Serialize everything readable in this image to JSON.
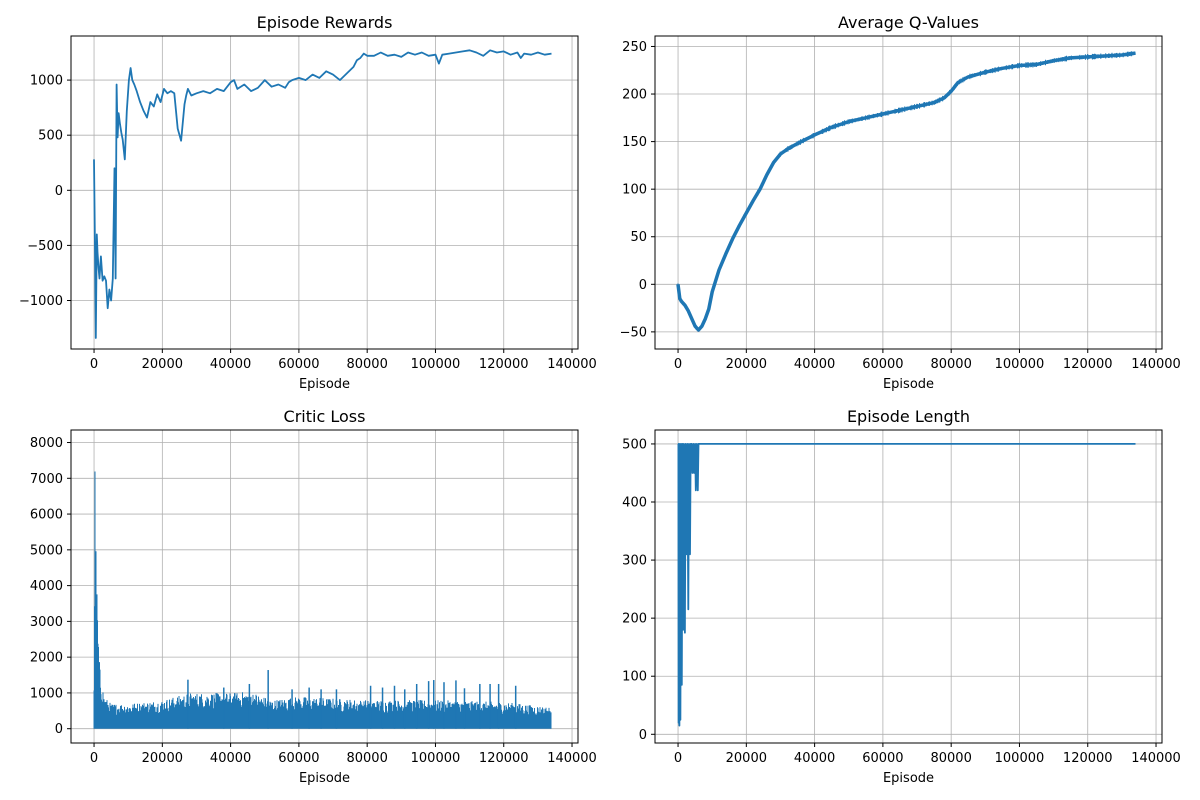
{
  "figure": {
    "series_color": "#1f77b4",
    "background": "#ffffff"
  },
  "chart_data": [
    {
      "id": "rewards",
      "type": "line",
      "title": "Episode Rewards",
      "xlabel": "Episode",
      "ylabel": "",
      "grid": true,
      "legend": "none",
      "xlim": [
        -6750,
        141750
      ],
      "ylim": [
        -1440,
        1400
      ],
      "xticks": [
        0,
        20000,
        40000,
        60000,
        80000,
        100000,
        120000,
        140000
      ],
      "xtick_labels": [
        "0",
        "20000",
        "40000",
        "60000",
        "80000",
        "100000",
        "120000",
        "140000"
      ],
      "yticks": [
        -1000,
        -500,
        0,
        500,
        1000
      ],
      "ytick_labels": [
        "−1000",
        "−500",
        "0",
        "500",
        "1000"
      ],
      "series": [
        {
          "noise": 0,
          "x": [
            0,
            300,
            500,
            800,
            1000,
            1300,
            1600,
            2000,
            2500,
            3000,
            3500,
            4000,
            4500,
            5000,
            5500,
            6000,
            6300,
            6600,
            6900,
            7200,
            7600,
            8000,
            8400,
            9000,
            9600,
            10200,
            10700,
            11200,
            11800,
            12500,
            13500,
            14500,
            15500,
            16500,
            17500,
            18500,
            19500,
            20500,
            21500,
            22500,
            23500,
            24500,
            25500,
            26500,
            27000,
            27500,
            28500,
            30000,
            32000,
            34000,
            36000,
            38000,
            40000,
            41000,
            42000,
            44000,
            46000,
            48000,
            50000,
            52000,
            54000,
            56000,
            57000,
            58000,
            60000,
            62000,
            64000,
            66000,
            68000,
            70000,
            72000,
            74000,
            76000,
            77000,
            78000,
            79000,
            80000,
            82000,
            84000,
            86000,
            88000,
            90000,
            92000,
            94000,
            96000,
            98000,
            100000,
            101000,
            102000,
            104000,
            106000,
            108000,
            110000,
            112000,
            114000,
            116000,
            118000,
            120000,
            122000,
            124000,
            125000,
            126000,
            128000,
            130000,
            132000,
            134000
          ],
          "y": [
            280,
            -620,
            -1340,
            -400,
            -560,
            -700,
            -800,
            -600,
            -820,
            -780,
            -820,
            -1070,
            -900,
            -1000,
            -800,
            200,
            -800,
            960,
            480,
            700,
            600,
            520,
            460,
            280,
            720,
            1000,
            1110,
            1000,
            960,
            900,
            800,
            720,
            660,
            800,
            760,
            870,
            800,
            920,
            880,
            900,
            880,
            560,
            450,
            780,
            860,
            920,
            860,
            880,
            900,
            880,
            920,
            900,
            980,
            1000,
            920,
            960,
            900,
            930,
            1000,
            940,
            960,
            930,
            980,
            1000,
            1020,
            1000,
            1050,
            1020,
            1080,
            1050,
            1000,
            1060,
            1120,
            1180,
            1200,
            1240,
            1220,
            1220,
            1250,
            1220,
            1230,
            1210,
            1250,
            1230,
            1250,
            1220,
            1230,
            1150,
            1230,
            1240,
            1250,
            1260,
            1270,
            1250,
            1220,
            1270,
            1250,
            1260,
            1230,
            1250,
            1200,
            1240,
            1230,
            1250,
            1230,
            1240
          ]
        }
      ]
    },
    {
      "id": "qvalues",
      "type": "line",
      "title": "Average Q-Values",
      "xlabel": "Episode",
      "ylabel": "",
      "grid": true,
      "legend": "none",
      "xlim": [
        -6750,
        141750
      ],
      "ylim": [
        -68,
        261
      ],
      "xticks": [
        0,
        20000,
        40000,
        60000,
        80000,
        100000,
        120000,
        140000
      ],
      "xtick_labels": [
        "0",
        "20000",
        "40000",
        "60000",
        "80000",
        "100000",
        "120000",
        "140000"
      ],
      "yticks": [
        -50,
        0,
        50,
        100,
        150,
        200,
        250
      ],
      "ytick_labels": [
        "−50",
        "0",
        "50",
        "100",
        "150",
        "200",
        "250"
      ],
      "series": [
        {
          "noise": 3,
          "x": [
            0,
            500,
            1000,
            2000,
            3000,
            4000,
            5000,
            6000,
            7000,
            8000,
            9000,
            10000,
            12000,
            14000,
            16000,
            18000,
            20000,
            22000,
            24000,
            26000,
            28000,
            30000,
            32000,
            35000,
            40000,
            45000,
            50000,
            55000,
            60000,
            65000,
            70000,
            75000,
            78000,
            80000,
            82000,
            85000,
            90000,
            95000,
            100000,
            105000,
            110000,
            115000,
            120000,
            125000,
            130000,
            134000
          ],
          "y": [
            0,
            -15,
            -18,
            -22,
            -28,
            -36,
            -44,
            -48,
            -44,
            -36,
            -26,
            -8,
            15,
            32,
            48,
            62,
            75,
            88,
            100,
            115,
            128,
            137,
            142,
            148,
            157,
            165,
            171,
            175,
            179,
            183,
            187,
            191,
            196,
            203,
            212,
            218,
            223,
            227,
            230,
            231,
            235,
            238,
            239,
            240,
            241,
            243
          ]
        }
      ]
    },
    {
      "id": "critic_loss",
      "type": "line",
      "title": "Critic Loss",
      "xlabel": "Episode",
      "ylabel": "",
      "grid": true,
      "legend": "none",
      "xlim": [
        -6750,
        141750
      ],
      "ylim": [
        -400,
        8350
      ],
      "xticks": [
        0,
        20000,
        40000,
        60000,
        80000,
        100000,
        120000,
        140000
      ],
      "xtick_labels": [
        "0",
        "20000",
        "40000",
        "60000",
        "80000",
        "100000",
        "120000",
        "140000"
      ],
      "yticks": [
        0,
        1000,
        2000,
        3000,
        4000,
        5000,
        6000,
        7000,
        8000
      ],
      "ytick_labels": [
        "0",
        "1000",
        "2000",
        "3000",
        "4000",
        "5000",
        "6000",
        "7000",
        "8000"
      ],
      "series": [
        {
          "noise": 0,
          "band": {
            "x": [
              0,
              300,
              600,
              1000,
              1500,
              2000,
              3000,
              5000,
              10000,
              20000,
              28000,
              40000,
              46000,
              52000,
              60000,
              80000,
              100000,
              120000,
              134000
            ],
            "low": [
              0,
              0,
              0,
              0,
              0,
              0,
              0,
              0,
              0,
              0,
              0,
              0,
              0,
              0,
              0,
              0,
              0,
              0,
              0
            ],
            "high": [
              1500,
              7900,
              5000,
              3500,
              2000,
              1500,
              900,
              700,
              700,
              800,
              1000,
              1000,
              1050,
              800,
              900,
              800,
              800,
              750,
              600
            ]
          },
          "spikes": {
            "x": [
              27500,
              38000,
              45500,
              51000,
              58000,
              63000,
              66500,
              71000,
              81000,
              84500,
              88000,
              91000,
              94500,
              98000,
              99500,
              102500,
              106000,
              108500,
              113000,
              116000,
              118500,
              123500
            ],
            "y": [
              1370,
              1150,
              1250,
              1640,
              1100,
              1150,
              1100,
              1100,
              1200,
              1150,
              1200,
              1100,
              1250,
              1330,
              1360,
              1300,
              1350,
              1130,
              1250,
              1250,
              1250,
              1200
            ]
          }
        }
      ]
    },
    {
      "id": "episode_length",
      "type": "line",
      "title": "Episode Length",
      "xlabel": "Episode",
      "ylabel": "",
      "grid": true,
      "legend": "none",
      "xlim": [
        -6750,
        141750
      ],
      "ylim": [
        -15,
        524
      ],
      "xticks": [
        0,
        20000,
        40000,
        60000,
        80000,
        100000,
        120000,
        140000
      ],
      "xtick_labels": [
        "0",
        "20000",
        "40000",
        "60000",
        "80000",
        "100000",
        "120000",
        "140000"
      ],
      "yticks": [
        0,
        100,
        200,
        300,
        400,
        500
      ],
      "ytick_labels": [
        "0",
        "100",
        "200",
        "300",
        "400",
        "500"
      ],
      "series": [
        {
          "noise": 0,
          "x": [
            0,
            100,
            150,
            300,
            400,
            500,
            700,
            900,
            1100,
            1300,
            1500,
            1700,
            2000,
            2200,
            2500,
            2700,
            3000,
            3200,
            3500,
            3700,
            4000,
            4200,
            4500,
            4700,
            5000,
            5200,
            5500,
            5800,
            6000,
            6200,
            7000,
            134000
          ],
          "y": [
            500,
            500,
            20,
            30,
            15,
            500,
            25,
            500,
            85,
            500,
            180,
            500,
            175,
            500,
            310,
            500,
            215,
            500,
            310,
            500,
            500,
            450,
            500,
            450,
            500,
            420,
            500,
            420,
            500,
            500,
            500,
            500
          ]
        }
      ]
    }
  ]
}
